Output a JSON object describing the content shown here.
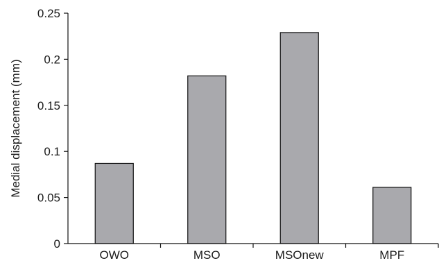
{
  "chart_data": {
    "type": "bar",
    "title": "",
    "xlabel": "",
    "ylabel": "Medial displacement (mm)",
    "categories": [
      "OWO",
      "MSO",
      "MSOnew",
      "MPF"
    ],
    "values": [
      0.087,
      0.182,
      0.229,
      0.061
    ],
    "ylim": [
      0,
      0.25
    ],
    "yticks": [
      0,
      0.05,
      0.1,
      0.15,
      0.2,
      0.25
    ],
    "ytick_labels": [
      "0",
      "0.05",
      "0.1",
      "0.15",
      "0.2",
      "0.25"
    ],
    "grid": false,
    "legend": "none",
    "colors": {
      "bar_fill": "#a9a9ad",
      "bar_stroke": "#111111",
      "axis": "#111111"
    }
  }
}
